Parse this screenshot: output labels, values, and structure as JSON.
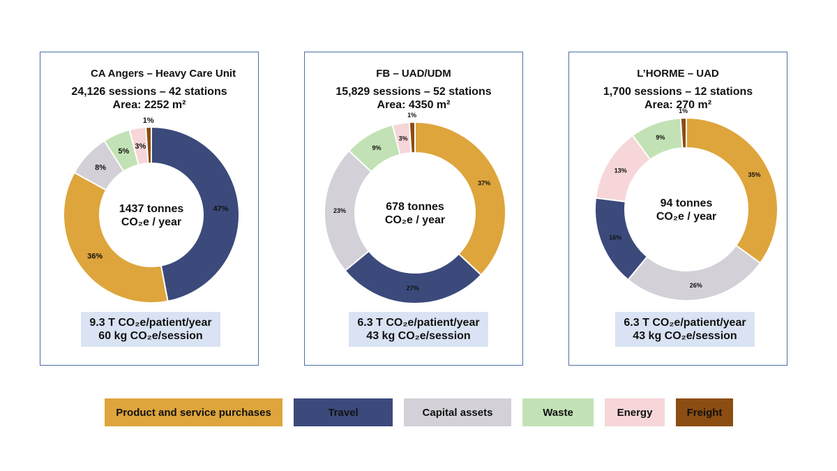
{
  "colors": {
    "product": "#dea53c",
    "travel": "#3b4a7b",
    "capital": "#d3d0d8",
    "waste": "#c2e2b5",
    "energy": "#f6d6d8",
    "freight": "#8c4d12"
  },
  "legend": [
    {
      "key": "product",
      "label": "Product and service purchases"
    },
    {
      "key": "travel",
      "label": "Travel"
    },
    {
      "key": "capital",
      "label": "Capital assets"
    },
    {
      "key": "waste",
      "label": "Waste"
    },
    {
      "key": "energy",
      "label": "Energy"
    },
    {
      "key": "freight",
      "label": "Freight"
    }
  ],
  "panels": [
    {
      "title": "CA Angers  –  Heavy Care Unit",
      "line1": "24,126 sessions – 42 stations",
      "line2": "Area: 2252 m²",
      "center1": "1437 tonnes",
      "center2": "CO₂e / year",
      "stat1": "9.3 T CO₂e/patient/year",
      "stat2": "60 kg CO₂e/session"
    },
    {
      "title": "FB – UAD/UDM",
      "line1": "15,829 sessions – 52 stations",
      "line2": "Area: 4350 m²",
      "center1": "678 tonnes",
      "center2": "CO₂e / year",
      "stat1": "6.3 T CO₂e/patient/year",
      "stat2": "43 kg CO₂e/session"
    },
    {
      "title": "L’HORME – UAD",
      "line1": "1,700 sessions – 12 stations",
      "line2": "Area: 270 m²",
      "center1": "94 tonnes",
      "center2": "CO₂e / year",
      "stat1": "6.3 T CO₂e/patient/year",
      "stat2": "43 kg CO₂e/session"
    }
  ],
  "chart_data": [
    {
      "type": "pie",
      "title": "CA Angers  –  Heavy Care Unit",
      "series": [
        {
          "key": "travel",
          "label": "47%",
          "value": 47
        },
        {
          "key": "product",
          "label": "36%",
          "value": 36
        },
        {
          "key": "capital",
          "label": "8%",
          "value": 8
        },
        {
          "key": "waste",
          "label": "5%",
          "value": 5
        },
        {
          "key": "energy",
          "label": "3%",
          "value": 3
        },
        {
          "key": "freight",
          "label": "1%",
          "value": 1
        }
      ]
    },
    {
      "type": "pie",
      "title": "FB – UAD/UDM",
      "series": [
        {
          "key": "product",
          "label": "37%",
          "value": 37
        },
        {
          "key": "travel",
          "label": "27%",
          "value": 27
        },
        {
          "key": "capital",
          "label": "23%",
          "value": 23
        },
        {
          "key": "waste",
          "label": "9%",
          "value": 9
        },
        {
          "key": "energy",
          "label": "3%",
          "value": 3
        },
        {
          "key": "freight",
          "label": "1%",
          "value": 1
        }
      ]
    },
    {
      "type": "pie",
      "title": "L’HORME – UAD",
      "series": [
        {
          "key": "product",
          "label": "35%",
          "value": 35
        },
        {
          "key": "capital",
          "label": "26%",
          "value": 26
        },
        {
          "key": "travel",
          "label": "16%",
          "value": 16
        },
        {
          "key": "energy",
          "label": "13%",
          "value": 13
        },
        {
          "key": "waste",
          "label": "9%",
          "value": 9
        },
        {
          "key": "freight",
          "label": "1%",
          "value": 1
        }
      ]
    }
  ]
}
